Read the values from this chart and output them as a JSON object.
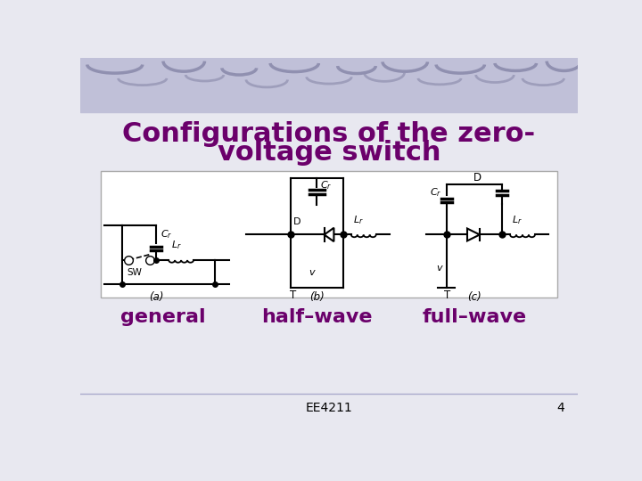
{
  "title_line1": "Configurations of the zero-",
  "title_line2": "voltage switch",
  "title_color": "#6B006B",
  "title_fontsize": 22,
  "title_fontweight": "bold",
  "slide_bg": "#E8E8F0",
  "top_bg_color": "#C0C0D8",
  "label_general": "general",
  "label_halfwave": "half–wave",
  "label_fullwave": "full–wave",
  "label_color": "#6B006B",
  "label_fontsize": 16,
  "footer_text": "EE4211",
  "footer_num": "4",
  "footer_fontsize": 10,
  "sub_a": "(a)",
  "sub_b": "(b)",
  "sub_c": "(c)"
}
